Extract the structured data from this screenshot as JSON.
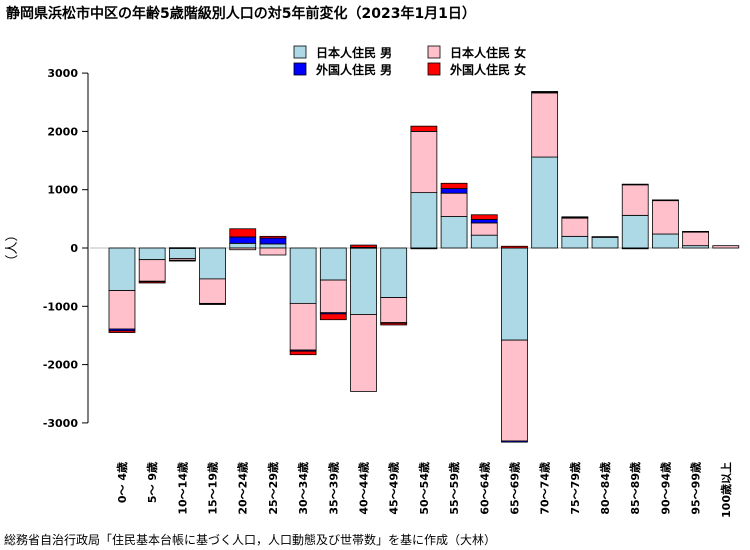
{
  "title": "静岡県浜松市中区の年齢5歳階級別人口の対5年前変化（2023年1月1日）",
  "caption": "総務省自治行政局「住民基本台帳に基づく人口，人口動態及び世帯数」を基に作成（大林）",
  "chart_data": {
    "type": "bar",
    "stacked": true,
    "ylabel": "（人）",
    "ylim": [
      -3300,
      3100
    ],
    "yticks": [
      3000,
      2000,
      1000,
      0,
      -1000,
      -2000,
      -3000
    ],
    "legend_position": "top-center",
    "grid": false,
    "categories": [
      "0～ 4歳",
      "5～ 9歳",
      "10～14歳",
      "15～19歳",
      "20～24歳",
      "25～29歳",
      "30～34歳",
      "35～39歳",
      "40～44歳",
      "45～49歳",
      "50～54歳",
      "55～59歳",
      "60～64歳",
      "65～69歳",
      "70～74歳",
      "75～79歳",
      "80～84歳",
      "85～89歳",
      "90～94歳",
      "95～99歳",
      "100歳以上"
    ],
    "series": [
      {
        "name": "日本人住民 男",
        "color": "#add8e6",
        "values": [
          -730,
          -200,
          -180,
          -530,
          80,
          70,
          -950,
          -550,
          -1140,
          -850,
          950,
          540,
          220,
          -1580,
          1560,
          200,
          190,
          560,
          240,
          40,
          0
        ]
      },
      {
        "name": "日本人住民 女",
        "color": "#ffc0cb",
        "values": [
          -660,
          -370,
          -30,
          -420,
          -30,
          -120,
          -800,
          -560,
          -1320,
          -430,
          1050,
          400,
          210,
          -1730,
          1100,
          320,
          0,
          530,
          580,
          240,
          40
        ]
      },
      {
        "name": "外国人住民 男",
        "color": "#0000ff",
        "values": [
          -30,
          -10,
          -5,
          -5,
          110,
          100,
          -20,
          -20,
          10,
          -10,
          -10,
          80,
          60,
          -20,
          15,
          5,
          0,
          -10,
          0,
          0,
          0
        ]
      },
      {
        "name": "外国人住民 女",
        "color": "#ff0000",
        "values": [
          -30,
          -20,
          5,
          -10,
          140,
          30,
          -60,
          -100,
          40,
          -30,
          90,
          90,
          80,
          30,
          10,
          10,
          5,
          5,
          5,
          5,
          0
        ]
      }
    ]
  }
}
